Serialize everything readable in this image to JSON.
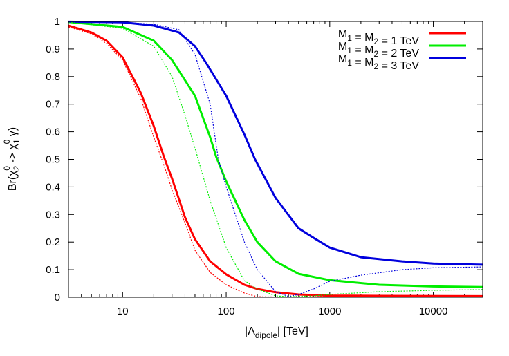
{
  "chart_data": {
    "type": "line",
    "title": "",
    "xlabel": {
      "pre": "|Λ",
      "sub": "dipole",
      "post": "| [TeV]"
    },
    "ylabel": {
      "parts": [
        [
          "Br(χ",
          ""
        ],
        [
          "2",
          "sub"
        ],
        [
          "0",
          "sup"
        ],
        [
          " -> χ",
          ""
        ],
        [
          "1",
          "sub"
        ],
        [
          "0",
          "sup"
        ],
        [
          "  γ)",
          ""
        ]
      ]
    },
    "x_scale": "log",
    "xlim": [
      3,
      30000
    ],
    "ylim": [
      0,
      1
    ],
    "grid": false,
    "legend_placement": "top-right",
    "x_ticks": [
      {
        "value": 10,
        "label": "10"
      },
      {
        "value": 100,
        "label": "100"
      },
      {
        "value": 1000,
        "label": "1000"
      },
      {
        "value": 10000,
        "label": "10000"
      }
    ],
    "y_ticks": [
      {
        "value": 0,
        "label": "0"
      },
      {
        "value": 0.1,
        "label": "0.1"
      },
      {
        "value": 0.2,
        "label": "0.2"
      },
      {
        "value": 0.3,
        "label": "0.3"
      },
      {
        "value": 0.4,
        "label": "0.4"
      },
      {
        "value": 0.5,
        "label": "0.5"
      },
      {
        "value": 0.6,
        "label": "0.6"
      },
      {
        "value": 0.7,
        "label": "0.7"
      },
      {
        "value": 0.8,
        "label": "0.8"
      },
      {
        "value": 0.9,
        "label": "0.9"
      },
      {
        "value": 1,
        "label": "1"
      }
    ],
    "series": [
      {
        "name": "M1 = M2 = 1 TeV",
        "color": "#ff0000",
        "style": "solid",
        "x": [
          3,
          5,
          7,
          10,
          15,
          20,
          25,
          30,
          40,
          50,
          70,
          100,
          150,
          200,
          300,
          500,
          1000,
          3000,
          30000
        ],
        "y": [
          0.985,
          0.96,
          0.93,
          0.87,
          0.74,
          0.62,
          0.51,
          0.43,
          0.29,
          0.21,
          0.13,
          0.083,
          0.045,
          0.03,
          0.018,
          0.01,
          0.006,
          0.005,
          0.004
        ]
      },
      {
        "name": "M1 = M2 = 2 TeV",
        "color": "#00ee00",
        "style": "solid",
        "x": [
          3,
          10,
          20,
          30,
          50,
          70,
          80,
          100,
          150,
          200,
          300,
          500,
          1000,
          3000,
          10000,
          30000
        ],
        "y": [
          0.998,
          0.98,
          0.93,
          0.86,
          0.73,
          0.58,
          0.51,
          0.42,
          0.28,
          0.2,
          0.13,
          0.085,
          0.062,
          0.045,
          0.039,
          0.037
        ]
      },
      {
        "name": "M1 = M2 = 3 TeV",
        "color": "#0000dd",
        "style": "solid",
        "x": [
          3,
          10,
          20,
          35,
          50,
          64,
          100,
          150,
          190,
          300,
          500,
          700,
          1000,
          2000,
          5000,
          10000,
          30000
        ],
        "y": [
          0.999,
          0.997,
          0.985,
          0.96,
          0.91,
          0.85,
          0.73,
          0.59,
          0.5,
          0.36,
          0.25,
          0.215,
          0.18,
          0.145,
          0.13,
          0.122,
          0.118
        ]
      },
      {
        "color": "#ff0000",
        "style": "dotted",
        "x": [
          3,
          5,
          7,
          10,
          15,
          20,
          25,
          30,
          40,
          50,
          70,
          100,
          150,
          200,
          300,
          1000,
          30000
        ],
        "y": [
          0.98,
          0.955,
          0.92,
          0.86,
          0.72,
          0.58,
          0.48,
          0.39,
          0.27,
          0.17,
          0.09,
          0.045,
          0.015,
          0.002,
          0.001,
          0.002,
          0.003
        ]
      },
      {
        "color": "#00ee00",
        "style": "dotted",
        "x": [
          3,
          10,
          20,
          30,
          40,
          50,
          70,
          100,
          150,
          200,
          300,
          400,
          700,
          1000,
          3000,
          10000,
          30000
        ],
        "y": [
          0.998,
          0.975,
          0.91,
          0.8,
          0.66,
          0.54,
          0.35,
          0.18,
          0.06,
          0.03,
          0.005,
          0.002,
          0.005,
          0.01,
          0.02,
          0.025,
          0.028
        ]
      },
      {
        "color": "#0000dd",
        "style": "dotted",
        "x": [
          3,
          10,
          20,
          35,
          50,
          70,
          84,
          100,
          150,
          200,
          300,
          400,
          500,
          700,
          1000,
          2000,
          5000,
          10000,
          30000
        ],
        "y": [
          0.999,
          0.997,
          0.99,
          0.97,
          0.88,
          0.7,
          0.5,
          0.4,
          0.2,
          0.1,
          0.02,
          0.003,
          0.01,
          0.03,
          0.058,
          0.08,
          0.1,
          0.107,
          0.11
        ]
      }
    ]
  }
}
